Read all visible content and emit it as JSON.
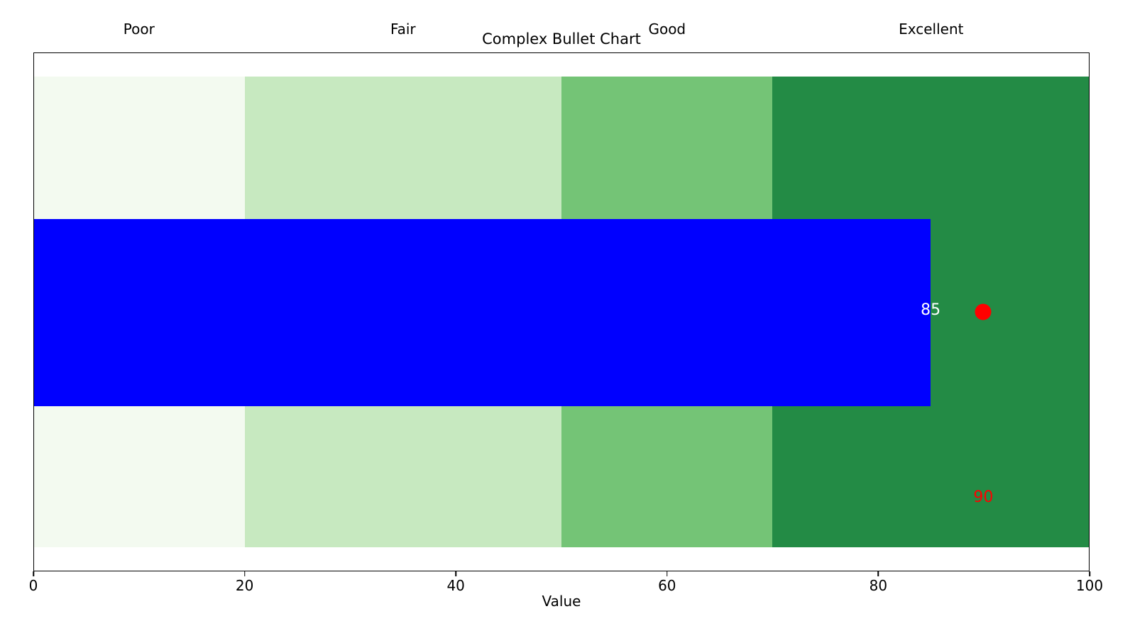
{
  "chart_data": {
    "type": "bullet",
    "title": "Complex Bullet Chart",
    "xlabel": "Value",
    "xlim": [
      0,
      100
    ],
    "xticks": [
      0,
      20,
      40,
      60,
      80,
      100
    ],
    "ranges": [
      {
        "label": "Poor",
        "start": 0,
        "end": 20,
        "color": "#f3faf0"
      },
      {
        "label": "Fair",
        "start": 20,
        "end": 50,
        "color": "#c7e9c0"
      },
      {
        "label": "Good",
        "start": 50,
        "end": 70,
        "color": "#74c476"
      },
      {
        "label": "Excellent",
        "start": 70,
        "end": 100,
        "color": "#238b45"
      }
    ],
    "measure": {
      "value": 85,
      "label": "85",
      "color": "#0000ff",
      "label_color": "#ffffff"
    },
    "target": {
      "value": 90,
      "label": "90",
      "color": "#ff0000",
      "label_color": "#ff0000"
    },
    "axis_color": "#000000",
    "text_color": "#000000",
    "background": "#ffffff",
    "grid": false,
    "legend": "none"
  }
}
